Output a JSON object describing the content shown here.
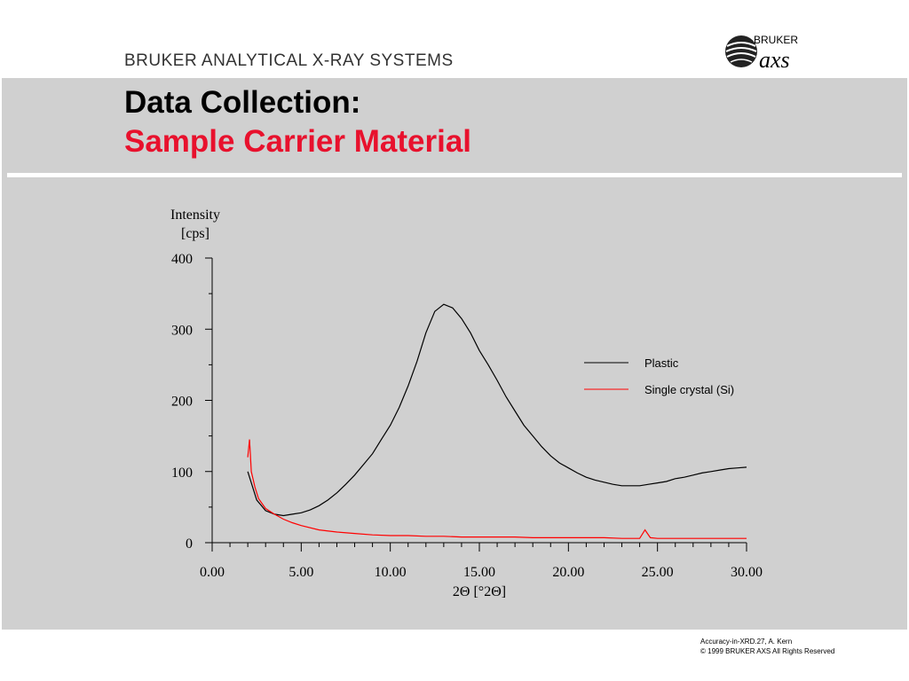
{
  "header": {
    "brand_text": "BRUKER ANALYTICAL X-RAY SYSTEMS",
    "logo_text_top": "BRUKER",
    "logo_text_bottom": "axs"
  },
  "slide": {
    "title_line1": "Data Collection:",
    "title_line2": "Sample Carrier Material"
  },
  "colors": {
    "panel": "#d0d0d0",
    "title_accent": "#e8112d",
    "series_plastic": "#000000",
    "series_si": "#ff0000"
  },
  "chart_data": {
    "type": "line",
    "title": "",
    "ylabel_line1": "Intensity",
    "ylabel_line2": "[cps]",
    "xlabel": "2Θ [°2Θ]",
    "xlim": [
      0,
      30
    ],
    "ylim": [
      0,
      400
    ],
    "x_ticks": [
      "0.00",
      "5.00",
      "10.00",
      "15.00",
      "20.00",
      "25.00",
      "30.00"
    ],
    "x_tick_values": [
      0,
      5,
      10,
      15,
      20,
      25,
      30
    ],
    "y_ticks": [
      "0",
      "100",
      "200",
      "300",
      "400"
    ],
    "y_tick_values": [
      0,
      100,
      200,
      300,
      400
    ],
    "grid": false,
    "legend_position": "right",
    "series": [
      {
        "name": "Plastic",
        "color": "#000000",
        "x": [
          2.0,
          2.5,
          3.0,
          3.5,
          4.0,
          4.5,
          5.0,
          5.5,
          6.0,
          6.5,
          7.0,
          7.5,
          8.0,
          8.5,
          9.0,
          9.5,
          10.0,
          10.5,
          11.0,
          11.5,
          12.0,
          12.5,
          13.0,
          13.5,
          14.0,
          14.5,
          15.0,
          15.5,
          16.0,
          16.5,
          17.0,
          17.5,
          18.0,
          18.5,
          19.0,
          19.5,
          20.0,
          20.5,
          21.0,
          21.5,
          22.0,
          22.5,
          23.0,
          23.5,
          24.0,
          24.5,
          25.0,
          25.5,
          26.0,
          26.5,
          27.0,
          27.5,
          28.0,
          28.5,
          29.0,
          29.5,
          30.0
        ],
        "y": [
          100,
          60,
          45,
          40,
          38,
          40,
          42,
          46,
          52,
          60,
          70,
          82,
          95,
          110,
          125,
          145,
          165,
          190,
          220,
          255,
          295,
          325,
          335,
          330,
          315,
          295,
          270,
          250,
          228,
          205,
          185,
          165,
          150,
          135,
          122,
          112,
          105,
          98,
          92,
          88,
          85,
          82,
          80,
          80,
          80,
          82,
          84,
          86,
          90,
          92,
          95,
          98,
          100,
          102,
          104,
          105,
          106
        ]
      },
      {
        "name": "Single crystal (Si)",
        "color": "#ff0000",
        "x": [
          2.0,
          2.1,
          2.2,
          2.4,
          2.6,
          2.8,
          3.0,
          3.5,
          4.0,
          4.5,
          5.0,
          6.0,
          7.0,
          8.0,
          9.0,
          10.0,
          11.0,
          12.0,
          13.0,
          14.0,
          15.0,
          16.0,
          17.0,
          18.0,
          19.0,
          20.0,
          21.0,
          22.0,
          23.0,
          24.0,
          24.3,
          24.6,
          25.0,
          26.0,
          27.0,
          28.0,
          29.0,
          30.0
        ],
        "y": [
          120,
          145,
          100,
          78,
          62,
          55,
          48,
          40,
          33,
          28,
          24,
          18,
          15,
          13,
          11,
          10,
          10,
          9,
          9,
          8,
          8,
          8,
          8,
          7,
          7,
          7,
          7,
          7,
          6,
          6,
          18,
          7,
          6,
          6,
          6,
          6,
          6,
          6
        ]
      }
    ]
  },
  "footer": {
    "line1": "Accuracy-in-XRD.27, A. Kern",
    "line2": "© 1999  BRUKER AXS  All Rights Reserved"
  }
}
